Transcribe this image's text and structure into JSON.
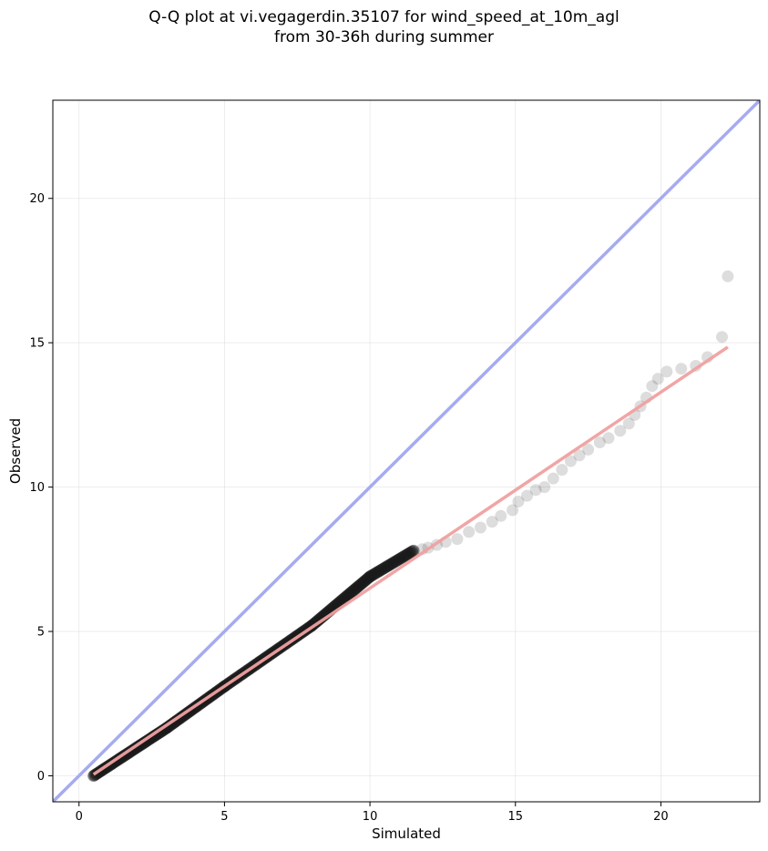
{
  "chart_data": {
    "type": "scatter",
    "title_lines": [
      "Q-Q plot at vi.vegagerdin.35107 for wind_speed_at_10m_agl",
      "from 30-36h during summer"
    ],
    "xlabel": "Simulated",
    "ylabel": "Observed",
    "xlim": [
      -0.9,
      23.4
    ],
    "ylim": [
      -0.9,
      23.4
    ],
    "xticks": [
      0,
      5,
      10,
      15,
      20
    ],
    "yticks": [
      0,
      5,
      10,
      15,
      20
    ],
    "grid": true,
    "colors": {
      "points": "#1a1a1a",
      "identity_line": "#a6abf0",
      "fit_line": "#f0a0a0"
    },
    "reference_line": {
      "slope": 1,
      "intercept": 0
    },
    "fit_line": {
      "x": [
        0.5,
        22.3
      ],
      "y": [
        0.05,
        14.85
      ]
    },
    "dense_segments": [
      {
        "x_start": 0.5,
        "x_end": 3.0,
        "y_start": 0.0,
        "y_end": 1.65,
        "count": 70
      },
      {
        "x_start": 3.0,
        "x_end": 5.0,
        "y_start": 1.65,
        "y_end": 3.1,
        "count": 55
      },
      {
        "x_start": 5.0,
        "x_end": 8.0,
        "y_start": 3.1,
        "y_end": 5.2,
        "count": 75
      },
      {
        "x_start": 8.0,
        "x_end": 10.0,
        "y_start": 5.2,
        "y_end": 6.9,
        "count": 55
      },
      {
        "x_start": 10.0,
        "x_end": 11.5,
        "y_start": 6.9,
        "y_end": 7.8,
        "count": 35
      }
    ],
    "tail_points": [
      [
        11.8,
        7.85
      ],
      [
        12.0,
        7.9
      ],
      [
        12.3,
        8.0
      ],
      [
        12.6,
        8.1
      ],
      [
        13.0,
        8.2
      ],
      [
        13.4,
        8.45
      ],
      [
        13.8,
        8.6
      ],
      [
        14.2,
        8.8
      ],
      [
        14.5,
        9.0
      ],
      [
        14.9,
        9.2
      ],
      [
        15.1,
        9.5
      ],
      [
        15.4,
        9.7
      ],
      [
        15.7,
        9.9
      ],
      [
        16.0,
        10.0
      ],
      [
        16.3,
        10.3
      ],
      [
        16.6,
        10.6
      ],
      [
        16.9,
        10.9
      ],
      [
        17.2,
        11.1
      ],
      [
        17.5,
        11.3
      ],
      [
        17.9,
        11.55
      ],
      [
        18.2,
        11.7
      ],
      [
        18.6,
        11.95
      ],
      [
        18.9,
        12.2
      ],
      [
        19.1,
        12.5
      ],
      [
        19.3,
        12.8
      ],
      [
        19.5,
        13.1
      ],
      [
        19.7,
        13.5
      ],
      [
        19.9,
        13.75
      ],
      [
        20.2,
        14.0
      ],
      [
        20.7,
        14.1
      ],
      [
        21.2,
        14.2
      ],
      [
        21.6,
        14.5
      ],
      [
        22.1,
        15.2
      ],
      [
        22.3,
        17.3
      ]
    ]
  }
}
